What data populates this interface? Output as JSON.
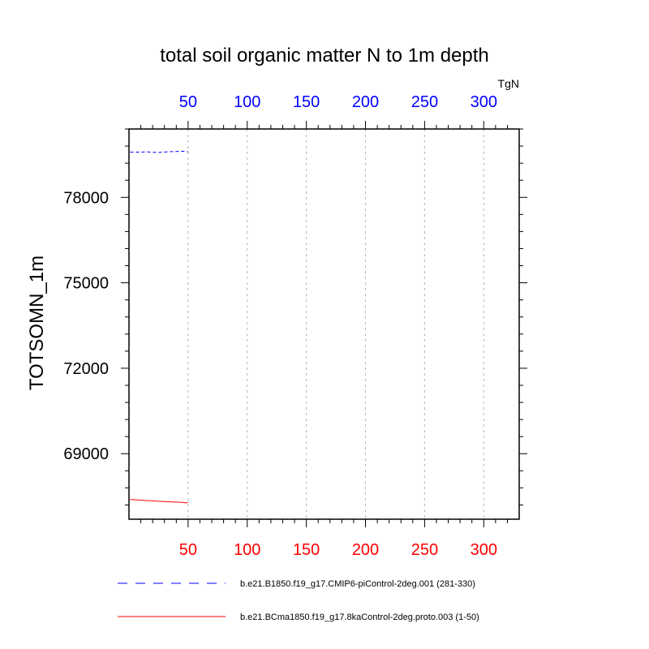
{
  "chart_data": {
    "type": "line",
    "title": "total soil organic matter N to 1m depth",
    "ylabel": "TOTSOMN_1m",
    "units": "TgN",
    "xlim": [
      0,
      330
    ],
    "ylim": [
      66700,
      80400
    ],
    "x_ticks": [
      "50",
      "100",
      "150",
      "200",
      "250",
      "300"
    ],
    "x_tick_values": [
      50,
      100,
      150,
      200,
      250,
      300
    ],
    "y_ticks": [
      "69000",
      "72000",
      "75000",
      "78000"
    ],
    "y_tick_values": [
      69000,
      72000,
      75000,
      78000
    ],
    "grid": "vertical dashed at x ticks",
    "series": [
      {
        "name": "b.e21.B1850.f19_g17.CMIP6-piControl-2deg.001 (281-330)",
        "color": "#0000ff",
        "style": "dashed",
        "axis": "top",
        "x": [
          1,
          5,
          10,
          15,
          20,
          25,
          30,
          35,
          40,
          45,
          50
        ],
        "y": [
          79590,
          79590,
          79585,
          79600,
          79580,
          79575,
          79590,
          79605,
          79610,
          79620,
          79600
        ]
      },
      {
        "name": "b.e21.BCma1850.f19_g17.8kaControl-2deg.proto.003 (1-50)",
        "color": "#ff0000",
        "style": "solid",
        "axis": "bottom",
        "x": [
          1,
          5,
          10,
          15,
          20,
          25,
          30,
          35,
          40,
          45,
          48,
          50
        ],
        "y": [
          67390,
          67385,
          67370,
          67355,
          67345,
          67330,
          67320,
          67310,
          67300,
          67290,
          67275,
          67290
        ]
      }
    ]
  }
}
